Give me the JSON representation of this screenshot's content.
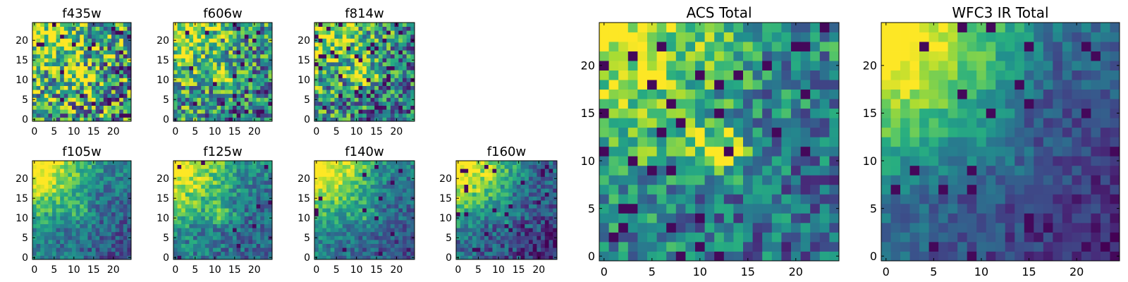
{
  "chart_data": [
    {
      "type": "heatmap",
      "title": "f435w",
      "x_ticks": [
        "0",
        "5",
        "10",
        "15",
        "20"
      ],
      "y_ticks": [
        "0",
        "5",
        "10",
        "15",
        "20"
      ],
      "xlim": [
        -0.5,
        24.5
      ],
      "ylim": [
        -0.5,
        24.5
      ],
      "grid_size": 25,
      "colormap": "viridis",
      "pattern": {
        "corner": 0.4,
        "center": 0.3,
        "noise": 0.95,
        "holes": 0.04,
        "base": 0.62
      }
    },
    {
      "type": "heatmap",
      "title": "f606w",
      "x_ticks": [
        "0",
        "5",
        "10",
        "15",
        "20"
      ],
      "y_ticks": [
        "0",
        "5",
        "10",
        "15",
        "20"
      ],
      "xlim": [
        -0.5,
        24.5
      ],
      "ylim": [
        -0.5,
        24.5
      ],
      "grid_size": 25,
      "colormap": "viridis",
      "pattern": {
        "corner": 0.45,
        "center": 0.55,
        "noise": 0.8,
        "holes": 0.05,
        "base": 0.55
      }
    },
    {
      "type": "heatmap",
      "title": "f814w",
      "x_ticks": [
        "0",
        "5",
        "10",
        "15",
        "20"
      ],
      "y_ticks": [
        "0",
        "5",
        "10",
        "15",
        "20"
      ],
      "xlim": [
        -0.5,
        24.5
      ],
      "ylim": [
        -0.5,
        24.5
      ],
      "grid_size": 25,
      "colormap": "viridis",
      "pattern": {
        "corner": 0.5,
        "center": 0.45,
        "noise": 0.8,
        "holes": 0.06,
        "base": 0.52
      }
    },
    {
      "type": "heatmap",
      "title": "f105w",
      "x_ticks": [
        "0",
        "5",
        "10",
        "15",
        "20"
      ],
      "y_ticks": [
        "0",
        "5",
        "10",
        "15",
        "20"
      ],
      "xlim": [
        -0.5,
        24.5
      ],
      "ylim": [
        -0.5,
        24.5
      ],
      "grid_size": 25,
      "colormap": "viridis",
      "pattern": {
        "corner": 0.7,
        "center": 0.2,
        "noise": 0.35,
        "holes": 0.0,
        "base": 0.45
      }
    },
    {
      "type": "heatmap",
      "title": "f125w",
      "x_ticks": [
        "0",
        "5",
        "10",
        "15",
        "20"
      ],
      "y_ticks": [
        "0",
        "5",
        "10",
        "15",
        "20"
      ],
      "xlim": [
        -0.5,
        24.5
      ],
      "ylim": [
        -0.5,
        24.5
      ],
      "grid_size": 25,
      "colormap": "viridis",
      "pattern": {
        "corner": 0.65,
        "center": 0.3,
        "noise": 0.4,
        "holes": 0.01,
        "base": 0.48
      }
    },
    {
      "type": "heatmap",
      "title": "f140w",
      "x_ticks": [
        "0",
        "5",
        "10",
        "15",
        "20"
      ],
      "y_ticks": [
        "0",
        "5",
        "10",
        "15",
        "20"
      ],
      "xlim": [
        -0.5,
        24.5
      ],
      "ylim": [
        -0.5,
        24.5
      ],
      "grid_size": 25,
      "colormap": "viridis",
      "pattern": {
        "corner": 0.75,
        "center": 0.25,
        "noise": 0.35,
        "holes": 0.02,
        "base": 0.45
      }
    },
    {
      "type": "heatmap",
      "title": "f160w",
      "x_ticks": [
        "0",
        "5",
        "10",
        "15",
        "20"
      ],
      "y_ticks": [
        "0",
        "5",
        "10",
        "15",
        "20"
      ],
      "xlim": [
        -0.5,
        24.5
      ],
      "ylim": [
        -0.5,
        24.5
      ],
      "grid_size": 25,
      "colormap": "viridis",
      "pattern": {
        "corner": 0.8,
        "center": 0.2,
        "noise": 0.4,
        "holes": 0.05,
        "base": 0.38
      }
    },
    {
      "type": "heatmap",
      "title": "ACS Total",
      "x_ticks": [
        "0",
        "5",
        "10",
        "15",
        "20"
      ],
      "y_ticks": [
        "0",
        "5",
        "10",
        "15",
        "20"
      ],
      "xlim": [
        -0.5,
        24.5
      ],
      "ylim": [
        -0.5,
        24.5
      ],
      "grid_size": 25,
      "colormap": "viridis",
      "pattern": {
        "corner": 0.55,
        "center": 0.45,
        "noise": 0.55,
        "holes": 0.05,
        "base": 0.5
      }
    },
    {
      "type": "heatmap",
      "title": "WFC3 IR Total",
      "x_ticks": [
        "0",
        "5",
        "10",
        "15",
        "20"
      ],
      "y_ticks": [
        "0",
        "5",
        "10",
        "15",
        "20"
      ],
      "xlim": [
        -0.5,
        24.5
      ],
      "ylim": [
        -0.5,
        24.5
      ],
      "grid_size": 25,
      "colormap": "viridis",
      "pattern": {
        "corner": 0.85,
        "center": 0.15,
        "noise": 0.25,
        "holes": 0.03,
        "base": 0.36
      }
    }
  ]
}
